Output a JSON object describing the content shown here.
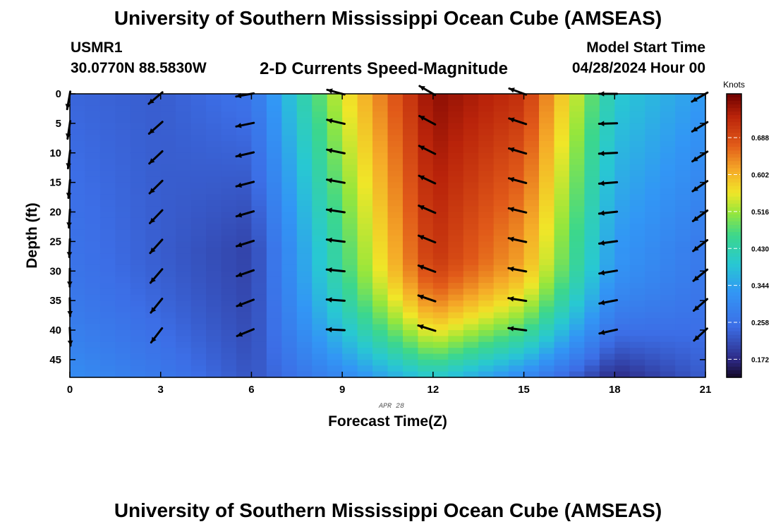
{
  "header": {
    "title": "University of Southern Mississippi Ocean Cube (AMSEAS)",
    "station": "USMR1",
    "coords": "30.0770N  88.5830W",
    "subtitle": "2-D Currents Speed-Magnitude",
    "model_start_label": "Model Start Time",
    "model_start_value": "04/28/2024 Hour 00"
  },
  "footer": {
    "title": "University of Southern Mississippi Ocean Cube (AMSEAS)"
  },
  "chart_data": {
    "type": "heatmap",
    "title": "2-D Currents Speed-Magnitude",
    "xlabel": "Forecast Time(Z)",
    "ylabel": "Depth (ft)",
    "date_label": "APR 28",
    "xlim": [
      0,
      21
    ],
    "ylim": [
      48,
      0
    ],
    "x_ticks": [
      0,
      3,
      6,
      9,
      12,
      15,
      18,
      21
    ],
    "y_ticks": [
      0,
      5,
      10,
      15,
      20,
      25,
      30,
      35,
      40,
      45
    ],
    "colorbar": {
      "label": "Knots",
      "range": [
        0.13,
        0.79
      ],
      "ticks": [
        0.172,
        0.258,
        0.344,
        0.43,
        0.516,
        0.602,
        0.688
      ],
      "tick_labels": [
        "0.172",
        "0.258",
        "0.344",
        "0.430",
        "0.516",
        "0.602",
        "0.688"
      ]
    },
    "speed_profile_by_hour": {
      "hours": [
        0,
        3,
        6,
        9,
        12,
        15,
        18,
        21
      ],
      "surface_speed": [
        0.24,
        0.23,
        0.26,
        0.55,
        0.77,
        0.72,
        0.4,
        0.33
      ],
      "mid_speed": [
        0.26,
        0.23,
        0.2,
        0.46,
        0.72,
        0.62,
        0.33,
        0.27
      ],
      "bottom_speed": [
        0.31,
        0.27,
        0.22,
        0.3,
        0.4,
        0.3,
        0.17,
        0.23
      ]
    },
    "vectors": {
      "depths": [
        0,
        5,
        10,
        15,
        20,
        25,
        30,
        35,
        40
      ],
      "hours": [
        0,
        3,
        6,
        9,
        12,
        15,
        18,
        21
      ],
      "direction_deg_from_east": [
        -100,
        -140,
        190,
        165,
        150,
        160,
        180,
        -150
      ],
      "note": "arrows indicate current direction at each hour/depth"
    }
  }
}
